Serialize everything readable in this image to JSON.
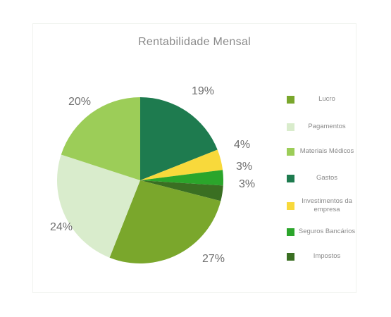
{
  "chart_data": {
    "type": "pie",
    "title": "Rentabilidade Mensal",
    "slices": [
      {
        "name": "Gastos",
        "value": 19,
        "label": "19%",
        "color": "#1e7b4f"
      },
      {
        "name": "Investimentos da empresa",
        "value": 4,
        "label": "4%",
        "color": "#f8d93b"
      },
      {
        "name": "Seguros Bancários",
        "value": 3,
        "label": "3%",
        "color": "#2ba52b"
      },
      {
        "name": "Impostos",
        "value": 3,
        "label": "3%",
        "color": "#3a6f22"
      },
      {
        "name": "Lucro",
        "value": 27,
        "label": "27%",
        "color": "#7aa72c"
      },
      {
        "name": "Pagamentos",
        "value": 24,
        "label": "24%",
        "color": "#d9eccc"
      },
      {
        "name": "Materiais Médicos",
        "value": 20,
        "label": "20%",
        "color": "#9ccd58"
      }
    ],
    "legend": {
      "placement": "right",
      "items": [
        {
          "name": "Lucro",
          "color": "#7aa72c"
        },
        {
          "name": "Pagamentos",
          "color": "#d9eccc"
        },
        {
          "name": "Materiais Médicos",
          "color": "#9ccd58"
        },
        {
          "name": "Gastos",
          "color": "#1e7b4f"
        },
        {
          "name": "Investimentos da empresa",
          "color": "#f8d93b"
        },
        {
          "name": "Seguros Bancários",
          "color": "#2ba52b"
        },
        {
          "name": "Impostos",
          "color": "#3a6f22"
        }
      ]
    }
  }
}
